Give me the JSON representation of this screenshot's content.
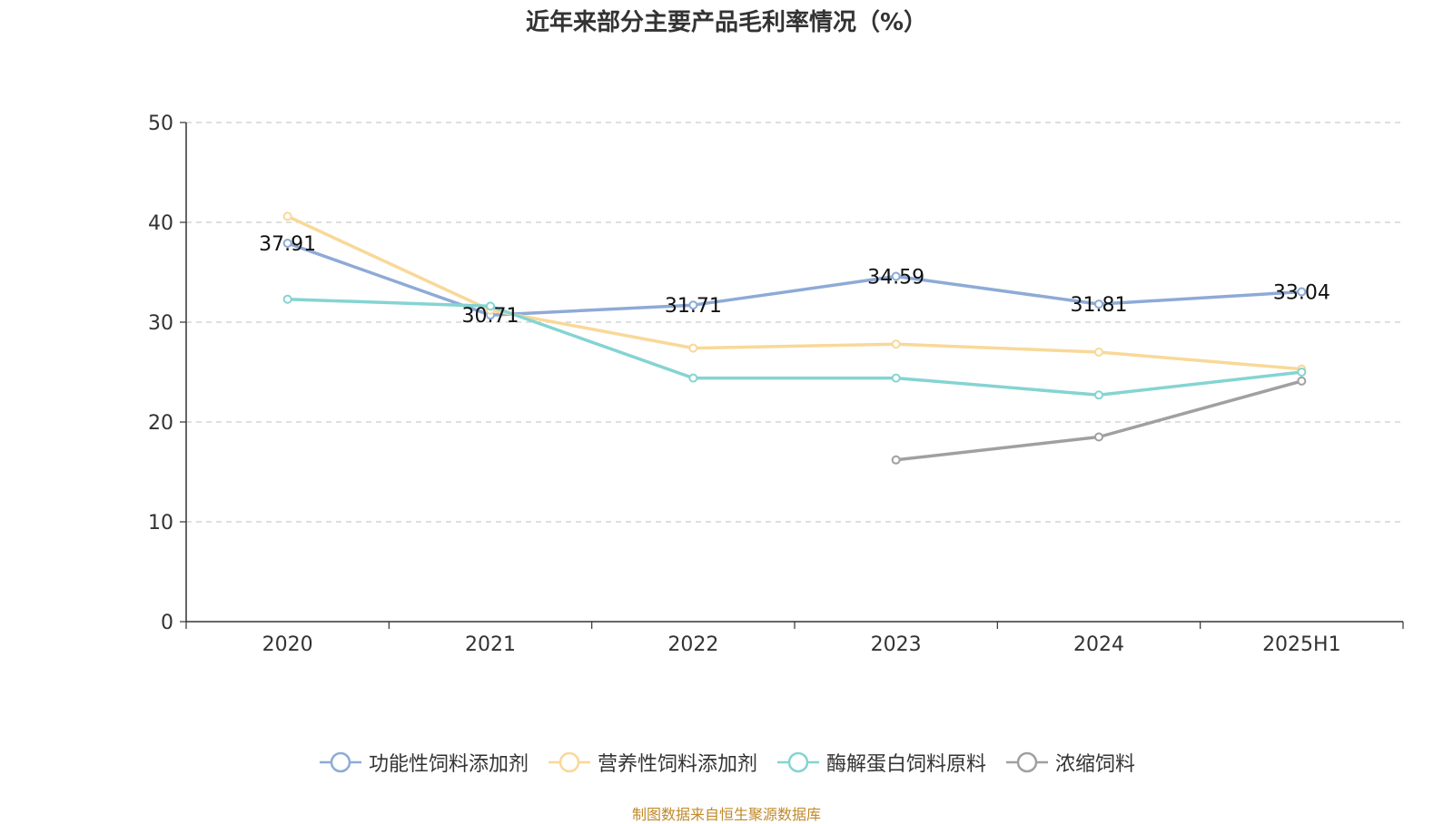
{
  "title": "近年来部分主要产品毛利率情况（%）",
  "source": "制图数据来自恒生聚源数据库",
  "chart_data": {
    "type": "line",
    "categories": [
      "2020",
      "2021",
      "2022",
      "2023",
      "2024",
      "2025H1"
    ],
    "ylim": [
      0,
      50
    ],
    "yticks": [
      0,
      10,
      20,
      30,
      40,
      50
    ],
    "grid": true,
    "legend_position": "bottom",
    "series": [
      {
        "name": "功能性饲料添加剂",
        "color": "#8eaad6",
        "values": [
          37.91,
          30.71,
          31.71,
          34.59,
          31.81,
          33.04
        ],
        "labels": [
          "37.91",
          "30.71",
          "31.71",
          "34.59",
          "31.81",
          "33.04"
        ]
      },
      {
        "name": "营养性饲料添加剂",
        "color": "#f9d898",
        "values": [
          40.6,
          31.2,
          27.4,
          27.8,
          27.0,
          25.3
        ]
      },
      {
        "name": "酶解蛋白饲料原料",
        "color": "#84d4d2",
        "values": [
          32.3,
          31.6,
          24.4,
          24.4,
          22.7,
          25.0
        ]
      },
      {
        "name": "浓缩饲料",
        "color": "#a0a0a0",
        "values": [
          null,
          null,
          null,
          16.2,
          18.5,
          24.1
        ]
      }
    ]
  }
}
